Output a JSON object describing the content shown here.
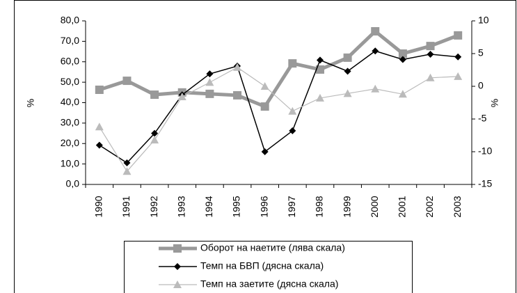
{
  "chart_data": {
    "type": "line",
    "y_label": "%",
    "y2_label": "%",
    "categories": [
      "1990",
      "1991",
      "1992",
      "1993",
      "1994",
      "1995",
      "1996",
      "1997",
      "1998",
      "1999",
      "2000",
      "2001",
      "2002",
      "2003"
    ],
    "ylim": [
      0,
      80
    ],
    "yticks": [
      {
        "value": 0,
        "label": "0,0"
      },
      {
        "value": 10,
        "label": "10,0"
      },
      {
        "value": 20,
        "label": "20,0"
      },
      {
        "value": 30,
        "label": "30,0"
      },
      {
        "value": 40,
        "label": "40,0"
      },
      {
        "value": 50,
        "label": "50,0"
      },
      {
        "value": 60,
        "label": "60,0"
      },
      {
        "value": 70,
        "label": "70,0"
      },
      {
        "value": 80,
        "label": "80,0"
      }
    ],
    "y2lim": [
      -15,
      10
    ],
    "y2ticks": [
      -15,
      -10,
      -5,
      0,
      5,
      10
    ],
    "grid": false,
    "legend": "bottom",
    "series": [
      {
        "name": "Оборот на наетите (лява скала)",
        "color": "#999999",
        "marker": "square",
        "values": [
          46.3,
          50.7,
          43.9,
          45.0,
          44.3,
          43.6,
          38.1,
          59.2,
          56.2,
          62.0,
          74.9,
          64.0,
          67.7,
          72.9
        ]
      },
      {
        "name": "Темп на БВП (дясна скала)",
        "color": "#000000",
        "marker": "diamond",
        "axis": "y2",
        "values": [
          -9.0,
          -11.7,
          -7.2,
          -1.3,
          1.9,
          3.1,
          -10.0,
          -6.8,
          4.0,
          2.3,
          5.4,
          4.1,
          4.9,
          4.5
        ]
      },
      {
        "name": "Темп на заетите (дясна скала)",
        "color": "#bbbbbb",
        "marker": "triangle",
        "axis": "y2",
        "values": [
          -6.2,
          -13.0,
          -8.2,
          -1.6,
          0.6,
          2.9,
          0.0,
          -3.8,
          -1.8,
          -1.1,
          -0.4,
          -1.2,
          1.3,
          1.5
        ]
      }
    ]
  }
}
